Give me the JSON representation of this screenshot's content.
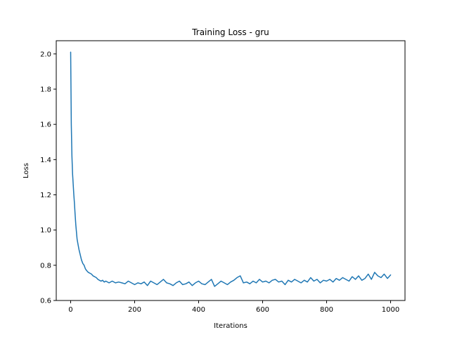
{
  "chart_data": {
    "type": "line",
    "title": "Training Loss - gru",
    "xlabel": "Iterations",
    "ylabel": "Loss",
    "xlim": [
      -45,
      1045
    ],
    "ylim": [
      0.6,
      2.075
    ],
    "xticks": [
      0,
      200,
      400,
      600,
      800,
      1000
    ],
    "xtick_labels": [
      "0",
      "200",
      "400",
      "600",
      "800",
      "1000"
    ],
    "yticks": [
      0.6,
      0.8,
      1.0,
      1.2,
      1.4,
      1.6,
      1.8,
      2.0
    ],
    "ytick_labels": [
      "0.6",
      "0.8",
      "1.0",
      "1.2",
      "1.4",
      "1.6",
      "1.8",
      "2.0"
    ],
    "grid": false,
    "series_color": "#1f77b4",
    "series": [
      {
        "x": [
          0,
          2,
          4,
          6,
          8,
          10,
          12,
          14,
          16,
          18,
          20,
          23,
          26,
          30,
          34,
          38,
          42,
          46,
          50,
          55,
          60,
          65,
          70,
          75,
          80,
          85,
          90,
          95,
          100,
          105,
          110,
          120,
          130,
          140,
          150,
          160,
          170,
          180,
          190,
          200,
          210,
          220,
          230,
          240,
          250,
          260,
          270,
          280,
          290,
          300,
          310,
          320,
          330,
          340,
          350,
          360,
          370,
          380,
          390,
          400,
          410,
          420,
          430,
          440,
          450,
          460,
          470,
          480,
          490,
          500,
          510,
          520,
          530,
          540,
          550,
          560,
          570,
          580,
          590,
          600,
          610,
          620,
          630,
          640,
          650,
          660,
          670,
          680,
          690,
          700,
          710,
          720,
          730,
          740,
          750,
          760,
          770,
          780,
          790,
          800,
          810,
          820,
          830,
          840,
          850,
          860,
          870,
          880,
          890,
          900,
          910,
          920,
          930,
          940,
          950,
          960,
          970,
          980,
          990,
          1000
        ],
        "y": [
          2.01,
          1.6,
          1.42,
          1.32,
          1.26,
          1.2,
          1.15,
          1.09,
          1.03,
          0.99,
          0.95,
          0.92,
          0.89,
          0.86,
          0.83,
          0.81,
          0.8,
          0.78,
          0.77,
          0.76,
          0.755,
          0.75,
          0.74,
          0.735,
          0.73,
          0.72,
          0.715,
          0.71,
          0.715,
          0.705,
          0.71,
          0.7,
          0.71,
          0.7,
          0.705,
          0.7,
          0.695,
          0.71,
          0.7,
          0.69,
          0.7,
          0.695,
          0.705,
          0.685,
          0.71,
          0.7,
          0.69,
          0.705,
          0.72,
          0.7,
          0.695,
          0.685,
          0.7,
          0.71,
          0.69,
          0.695,
          0.705,
          0.685,
          0.7,
          0.71,
          0.695,
          0.69,
          0.705,
          0.72,
          0.68,
          0.695,
          0.71,
          0.7,
          0.69,
          0.705,
          0.715,
          0.73,
          0.74,
          0.7,
          0.705,
          0.695,
          0.71,
          0.7,
          0.72,
          0.705,
          0.71,
          0.7,
          0.715,
          0.72,
          0.705,
          0.71,
          0.69,
          0.715,
          0.705,
          0.72,
          0.71,
          0.7,
          0.715,
          0.705,
          0.73,
          0.71,
          0.72,
          0.7,
          0.715,
          0.71,
          0.72,
          0.705,
          0.725,
          0.715,
          0.73,
          0.72,
          0.71,
          0.735,
          0.72,
          0.74,
          0.715,
          0.725,
          0.75,
          0.72,
          0.76,
          0.74,
          0.73,
          0.75,
          0.725,
          0.745
        ]
      }
    ]
  }
}
